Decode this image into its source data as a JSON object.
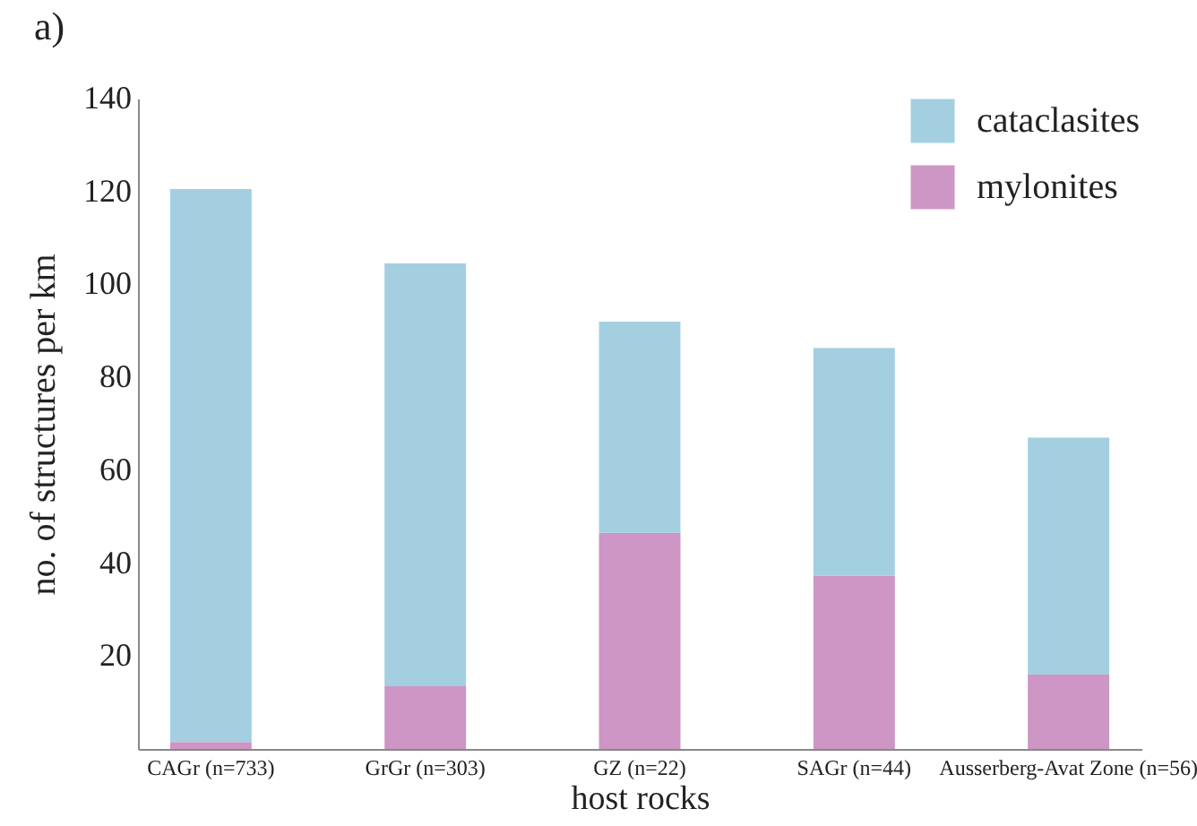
{
  "chart_data": {
    "type": "bar",
    "stacked": true,
    "annotations": [
      "a)"
    ],
    "xlabel": "host rocks",
    "ylabel": "no. of structures per km",
    "categories": [
      "CAGr (n=733)",
      "GrGr (n=303)",
      "GZ (n=22)",
      "SAGr (n=44)",
      "Ausserberg-Avat Zone (n=56)"
    ],
    "series": [
      {
        "name": "mylonites",
        "color": "#cd96c4",
        "values": [
          1.5,
          13.5,
          46.5,
          37.3,
          16
        ]
      },
      {
        "name": "cataclasites",
        "color": "#a3cfe1",
        "values": [
          119,
          91,
          45.5,
          49,
          51
        ]
      }
    ],
    "ylim": [
      0,
      140
    ],
    "yticks": [
      20,
      40,
      60,
      80,
      100,
      120,
      140
    ],
    "legend": "top right"
  }
}
